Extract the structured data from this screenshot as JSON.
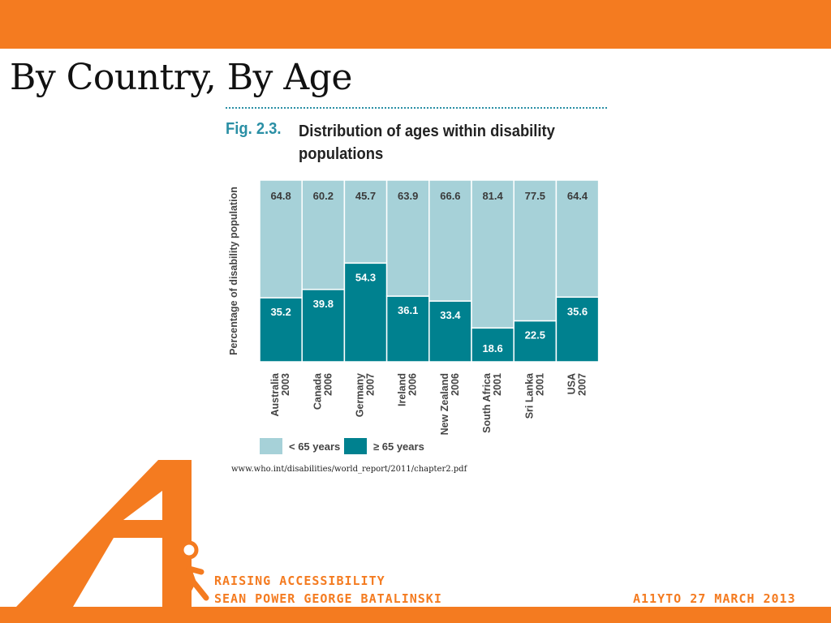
{
  "slide": {
    "title": "By Country, By Age",
    "source": "www.who.int/disabilities/world_report/2011/chapter2.pdf"
  },
  "figure": {
    "number": "Fig. 2.3.",
    "caption": "Distribution of ages within disability populations"
  },
  "footer": {
    "line1": "RAISING ACCESSIBILITY",
    "line2": "SEAN POWER GEORGE BATALINSKI",
    "event": "A11YTO 27 MARCH 2013"
  },
  "colors": {
    "brand_orange": "#f47b20",
    "bar_light": "#a6d1d8",
    "bar_dark": "#00818f",
    "figure_accent": "#2a8fa5"
  },
  "chart_data": {
    "type": "bar",
    "stacked": true,
    "title": "Distribution of ages within disability populations",
    "ylabel": "Percentage of disability population",
    "ylim": [
      0,
      100
    ],
    "categories": [
      "Australia 2003",
      "Canada 2006",
      "Germany 2007",
      "Ireland 2006",
      "New Zealand 2006",
      "South Africa 2001",
      "Sri Lanka 2001",
      "USA 2007"
    ],
    "category_lines": [
      [
        "Australia",
        "2003"
      ],
      [
        "Canada",
        "2006"
      ],
      [
        "Germany",
        "2007"
      ],
      [
        "Ireland",
        "2006"
      ],
      [
        "New Zealand",
        "2006"
      ],
      [
        "South Africa",
        "2001"
      ],
      [
        "Sri Lanka",
        "2001"
      ],
      [
        "USA",
        "2007"
      ]
    ],
    "series": [
      {
        "name": "≥ 65 years",
        "values": [
          35.2,
          39.8,
          54.3,
          36.1,
          33.4,
          18.6,
          22.5,
          35.6
        ],
        "color": "#00818f"
      },
      {
        "name": "< 65 years",
        "values": [
          64.8,
          60.2,
          45.7,
          63.9,
          66.6,
          81.4,
          77.5,
          64.4
        ],
        "color": "#a6d1d8"
      }
    ],
    "legend": [
      "< 65 years",
      "≥ 65 years"
    ],
    "legend_position": "bottom-left",
    "grid": false
  }
}
